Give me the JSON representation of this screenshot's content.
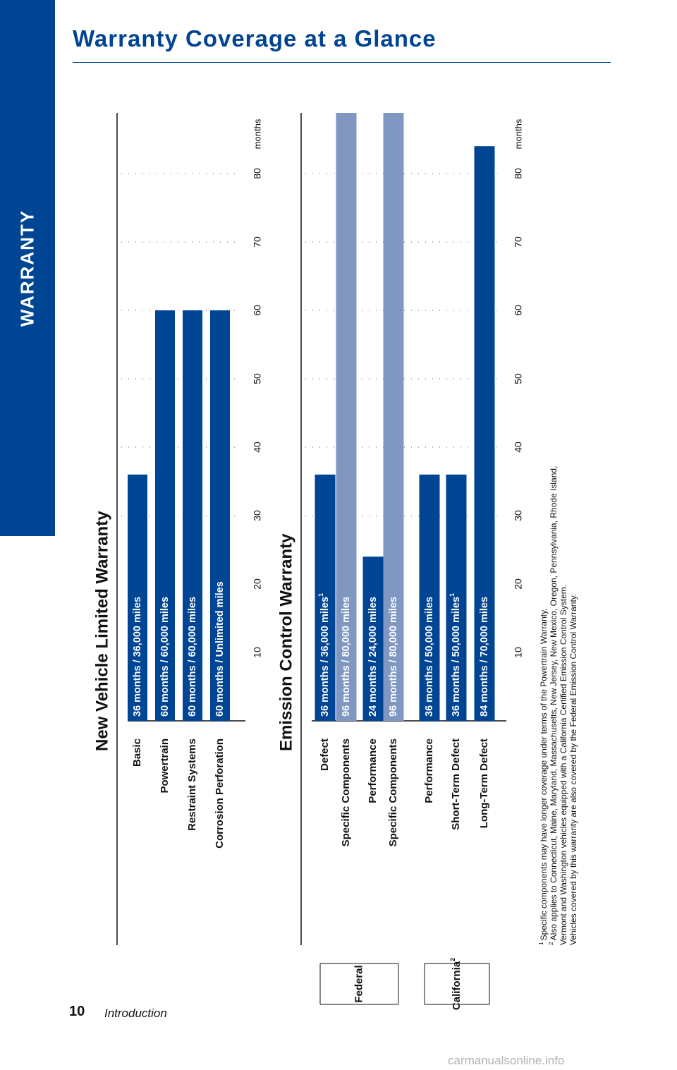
{
  "side_tab": {
    "label": "WARRANTY"
  },
  "page_title": "Warranty Coverage at a Glance",
  "footer": {
    "page_number": "10",
    "section": "Introduction"
  },
  "watermark": "carmanualsonline.info",
  "colors": {
    "brand": "#004494",
    "light_bar": "#8097c2"
  },
  "chart_data": [
    {
      "type": "bar",
      "orientation": "horizontal",
      "title": "New Vehicle Limited Warranty",
      "xlabel": "months",
      "xlim": [
        0,
        100
      ],
      "xticks": [
        10,
        20,
        30,
        40,
        50,
        60,
        70,
        80
      ],
      "grid": true,
      "categories": [
        "Basic",
        "Powertrain",
        "Restraint Systems",
        "Corrosion Perforation"
      ],
      "values": [
        36,
        60,
        60,
        60
      ],
      "data_labels": [
        "36 months  /  36,000 miles",
        "60 months  /  60,000 miles",
        "60 months  /  60,000 miles",
        "60 months  /  Unlimited miles"
      ],
      "bar_colors": [
        "#004494",
        "#004494",
        "#004494",
        "#004494"
      ]
    },
    {
      "type": "bar",
      "orientation": "horizontal",
      "title": "Emission Control Warranty",
      "xlabel": "months",
      "xlim": [
        0,
        100
      ],
      "xticks": [
        10,
        20,
        30,
        40,
        50,
        60,
        70,
        80
      ],
      "grid": true,
      "groups": [
        {
          "label": "Federal",
          "rows": [
            0,
            1,
            2,
            3
          ]
        },
        {
          "label": "California",
          "superscript": "2",
          "rows": [
            4,
            5,
            6
          ]
        }
      ],
      "categories": [
        "Defect",
        "Specific Components",
        "Performance",
        "Specific Components",
        "Performance",
        "Short-Term Defect",
        "Long-Term Defect"
      ],
      "values": [
        36,
        96,
        24,
        96,
        36,
        36,
        84
      ],
      "data_labels": [
        "36 months  /  36,000 miles",
        "96 months  /  80,000 miles",
        "24 months  /  24,000 miles",
        "96 months  /  80,000 miles",
        "36 months  /  50,000 miles",
        "36 months  /  50,000 miles",
        "84 months  /  70,000 miles"
      ],
      "label_superscripts": [
        "1",
        "",
        "",
        "",
        "",
        "1",
        ""
      ],
      "bar_colors": [
        "#004494",
        "#8097c2",
        "#004494",
        "#8097c2",
        "#004494",
        "#004494",
        "#004494"
      ]
    }
  ],
  "footnotes": [
    {
      "mark": "1",
      "text": "Specific components may have longer coverage under terms of the Powertrain Warranty."
    },
    {
      "mark": "2",
      "text": "Also applies to Connecticut, Maine, Maryland, Massachusetts, New Jersey, New Mexico, Oregon, Pennsylvania, Rhode Island,"
    },
    {
      "mark": "",
      "text": "Vermont and Washington vehicles equipped with a California Certified Emission Control System."
    },
    {
      "mark": "",
      "text": "Vehicles covered by this warranty are also covered by the Federal Emission Control Warranty."
    }
  ]
}
